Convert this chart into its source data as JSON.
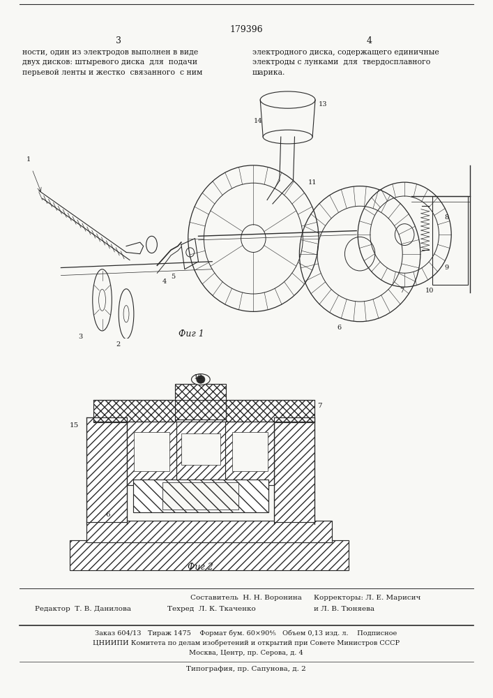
{
  "page_number_center": "179396",
  "page_left": "3",
  "page_right": "4",
  "text_left": "ности, один из электродов выполнен в виде\nдвух дисков: штыревого диска  для  подачи\nперьевой ленты и жестко  связанного  с ним",
  "text_right": "электродного диска, содержащего единичные\nэлектроды с лунками  для  твердосплавного\nшарика.",
  "fig1_caption": "Фиг 1",
  "fig2_caption": "Фиг 2",
  "footer_sestavitel": "Составитель  Н. Н. Воронина",
  "footer_redaktor": "Редактор  Т. В. Данилова",
  "footer_tehred": "Техред  Л. К. Ткаченко",
  "footer_korrektor1": "Корректоры: Л. Е. Марисич",
  "footer_korrektor2": "и Л. В. Тюняева",
  "footer_block1": "Заказ 604/13   Тираж 1475    Формат бум. 60×90⅘   Объем 0,13 изд. л.    Подписное",
  "footer_block2": "ЦНИИПИ Комитета по делам изобретений и открытий при Совете Министров СССР",
  "footer_block3": "Москва, Центр, пр. Серова, д. 4",
  "footer_last": "Типография, пр. Сапунова, д. 2",
  "bg_color": "#f8f8f5",
  "text_color": "#1a1a1a",
  "line_color": "#2a2a2a"
}
